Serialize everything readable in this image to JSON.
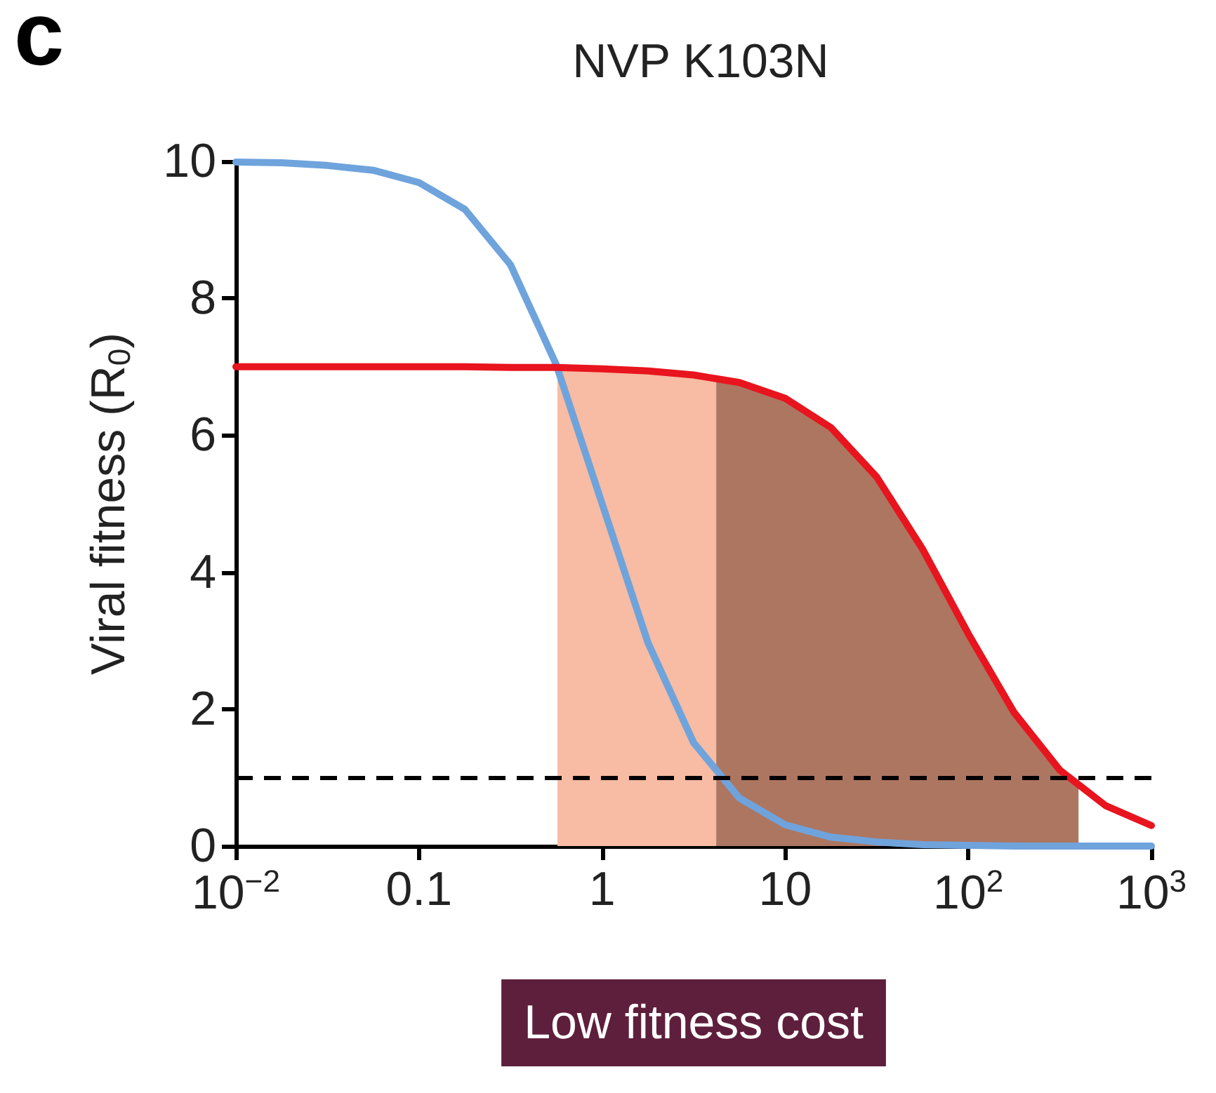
{
  "chart_data": {
    "type": "line",
    "title": "NVP K103N",
    "xlabel": "Low fitness cost",
    "ylabel": "Viral fitness (R$_{0}$)",
    "annotations": [
      "c"
    ],
    "log": "x",
    "xlim": [
      0.01,
      1000
    ],
    "xticks": [
      {
        "value": 0.01,
        "label": "10$^{−2}$"
      },
      0.1,
      1,
      10,
      {
        "value": 100,
        "label": "10$^{2}$"
      },
      {
        "value": 1000,
        "label": "10$^{3}$"
      }
    ],
    "ylim": [
      0,
      10
    ],
    "yticks": [
      0,
      2,
      4,
      6,
      8,
      10
    ],
    "grid": false,
    "marker": "none",
    "line_style": "solid",
    "x": [
      0.01,
      0.0178,
      0.0316,
      0.0562,
      0.1,
      0.178,
      0.316,
      0.562,
      1,
      1.78,
      3.16,
      5.62,
      10,
      17.8,
      31.6,
      56.2,
      100,
      178,
      316,
      562,
      1000
    ],
    "series": [
      {
        "type": "area",
        "color": "#f7bca3",
        "x": [
          0.57,
          1,
          1.78,
          3.16,
          4.2
        ],
        "values": [
          6.99,
          6.97,
          6.94,
          6.88,
          6.83
        ]
      },
      {
        "type": "area",
        "color": "#ad7661",
        "x": [
          4.2,
          5.62,
          10,
          17.8,
          31.6,
          56.2,
          100,
          178,
          316,
          400
        ],
        "values": [
          6.83,
          6.77,
          6.54,
          6.11,
          5.39,
          4.34,
          3.1,
          1.95,
          1.11,
          0.87
        ]
      },
      {
        "color": "#6fa3dc",
        "values": [
          9.99,
          9.98,
          9.94,
          9.87,
          9.69,
          9.3,
          8.49,
          7.03,
          5.0,
          2.97,
          1.51,
          0.7,
          0.31,
          0.13,
          0.06,
          0.02,
          0.01,
          0.0,
          0.0,
          0.0,
          0.0
        ]
      },
      {
        "color": "#e8141e",
        "values": [
          7.0,
          7.0,
          7.0,
          7.0,
          7.0,
          7.0,
          6.99,
          6.99,
          6.97,
          6.94,
          6.88,
          6.77,
          6.54,
          6.11,
          5.39,
          4.34,
          3.1,
          1.95,
          1.11,
          0.59,
          0.3
        ]
      }
    ],
    "ref_lines": [
      {
        "axis": "y",
        "value": 1,
        "color": "#000000",
        "line_style": "dashed"
      }
    ]
  }
}
